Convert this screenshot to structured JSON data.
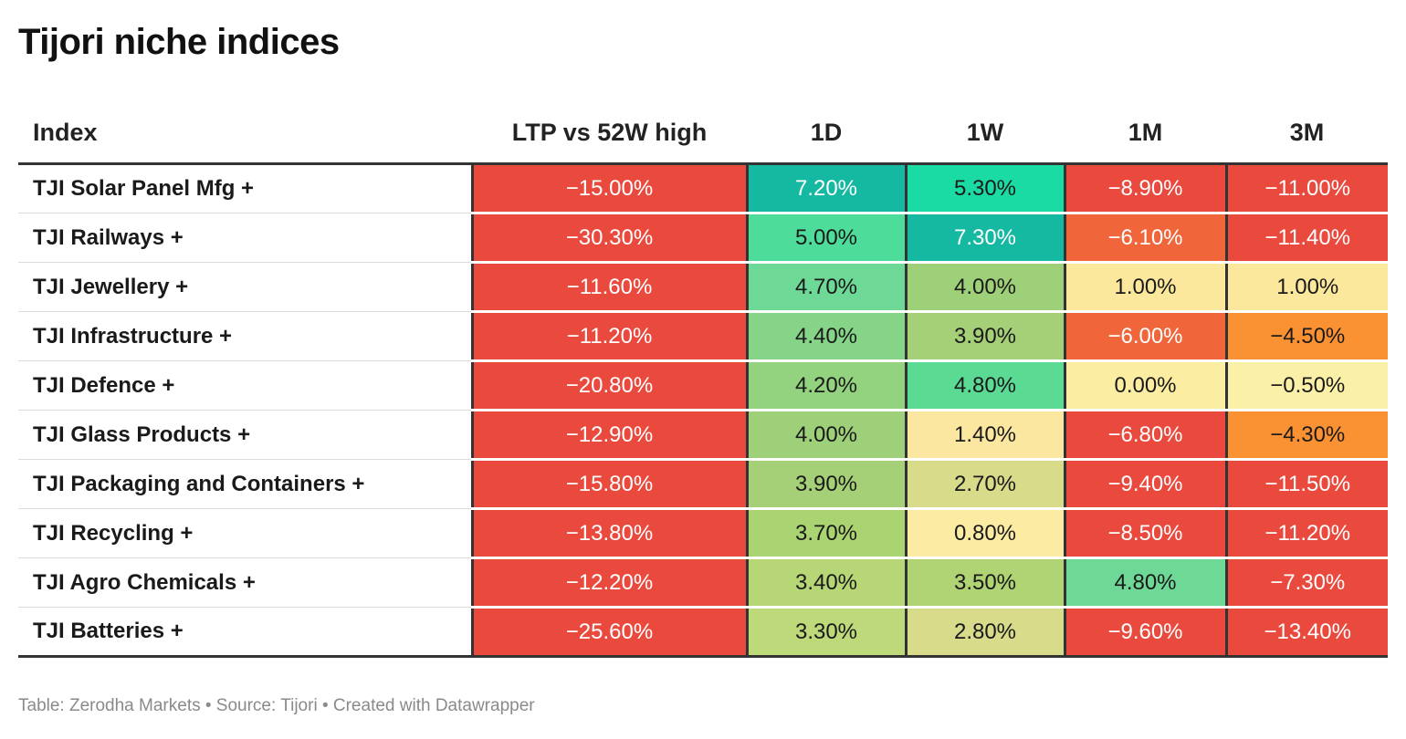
{
  "title": "Tijori niche indices",
  "footer": "Table: Zerodha Markets • Source: Tijori • Created with Datawrapper",
  "chart_data": {
    "type": "table",
    "title": "Tijori niche indices",
    "columns": [
      "Index",
      "LTP vs 52W high",
      "1D",
      "1W",
      "1M",
      "3M"
    ],
    "rows": [
      {
        "name": "TJI Solar Panel Mfg +",
        "values": [
          "−15.00%",
          "7.20%",
          "5.30%",
          "−8.90%",
          "−11.00%"
        ]
      },
      {
        "name": "TJI Railways +",
        "values": [
          "−30.30%",
          "5.00%",
          "7.30%",
          "−6.10%",
          "−11.40%"
        ]
      },
      {
        "name": "TJI Jewellery +",
        "values": [
          "−11.60%",
          "4.70%",
          "4.00%",
          "1.00%",
          "1.00%"
        ]
      },
      {
        "name": "TJI Infrastructure +",
        "values": [
          "−11.20%",
          "4.40%",
          "3.90%",
          "−6.00%",
          "−4.50%"
        ]
      },
      {
        "name": "TJI Defence +",
        "values": [
          "−20.80%",
          "4.20%",
          "4.80%",
          "0.00%",
          "−0.50%"
        ]
      },
      {
        "name": "TJI Glass Products +",
        "values": [
          "−12.90%",
          "4.00%",
          "1.40%",
          "−6.80%",
          "−4.30%"
        ]
      },
      {
        "name": "TJI Packaging and Containers +",
        "values": [
          "−15.80%",
          "3.90%",
          "2.70%",
          "−9.40%",
          "−11.50%"
        ]
      },
      {
        "name": "TJI Recycling +",
        "values": [
          "−13.80%",
          "3.70%",
          "0.80%",
          "−8.50%",
          "−11.20%"
        ]
      },
      {
        "name": "TJI Agro Chemicals +",
        "values": [
          "−12.20%",
          "3.40%",
          "3.50%",
          "4.80%",
          "−7.30%"
        ]
      },
      {
        "name": "TJI Batteries +",
        "values": [
          "−25.60%",
          "3.30%",
          "2.80%",
          "−9.60%",
          "−13.40%"
        ]
      }
    ],
    "cell_colors": [
      [
        "#ea4a3e",
        "#15b8a0",
        "#1adba3",
        "#ea4a3e",
        "#ea4a3e"
      ],
      [
        "#ea4a3e",
        "#4ddc9a",
        "#15b8a0",
        "#f0663a",
        "#ea4a3e"
      ],
      [
        "#ea4a3e",
        "#6ed896",
        "#9ed079",
        "#fbe89c",
        "#fbe89c"
      ],
      [
        "#ea4a3e",
        "#85d488",
        "#a5d077",
        "#f0663a",
        "#fa9233"
      ],
      [
        "#ea4a3e",
        "#93d27f",
        "#5bda94",
        "#fbeea2",
        "#fbf0a8"
      ],
      [
        "#ea4a3e",
        "#9ed079",
        "#fbe7a0",
        "#ea4a3e",
        "#fa9233"
      ],
      [
        "#ea4a3e",
        "#a5d077",
        "#d7db8a",
        "#ea4a3e",
        "#ea4a3e"
      ],
      [
        "#ea4a3e",
        "#aad371",
        "#fbeba3",
        "#ea4a3e",
        "#ea4a3e"
      ],
      [
        "#ea4a3e",
        "#b7d777",
        "#b0d374",
        "#6ed896",
        "#ea4a3e"
      ],
      [
        "#ea4a3e",
        "#bed97a",
        "#d8db89",
        "#ea4a3e",
        "#ea4a3e"
      ]
    ],
    "text_colors": [
      [
        "#ffffff",
        "#ffffff",
        "#1a1a1a",
        "#ffffff",
        "#ffffff"
      ],
      [
        "#ffffff",
        "#1a1a1a",
        "#ffffff",
        "#ffffff",
        "#ffffff"
      ],
      [
        "#ffffff",
        "#1a1a1a",
        "#1a1a1a",
        "#1a1a1a",
        "#1a1a1a"
      ],
      [
        "#ffffff",
        "#1a1a1a",
        "#1a1a1a",
        "#ffffff",
        "#1a1a1a"
      ],
      [
        "#ffffff",
        "#1a1a1a",
        "#1a1a1a",
        "#1a1a1a",
        "#1a1a1a"
      ],
      [
        "#ffffff",
        "#1a1a1a",
        "#1a1a1a",
        "#ffffff",
        "#1a1a1a"
      ],
      [
        "#ffffff",
        "#1a1a1a",
        "#1a1a1a",
        "#ffffff",
        "#ffffff"
      ],
      [
        "#ffffff",
        "#1a1a1a",
        "#1a1a1a",
        "#ffffff",
        "#ffffff"
      ],
      [
        "#ffffff",
        "#1a1a1a",
        "#1a1a1a",
        "#1a1a1a",
        "#ffffff"
      ],
      [
        "#ffffff",
        "#1a1a1a",
        "#1a1a1a",
        "#ffffff",
        "#ffffff"
      ]
    ]
  }
}
